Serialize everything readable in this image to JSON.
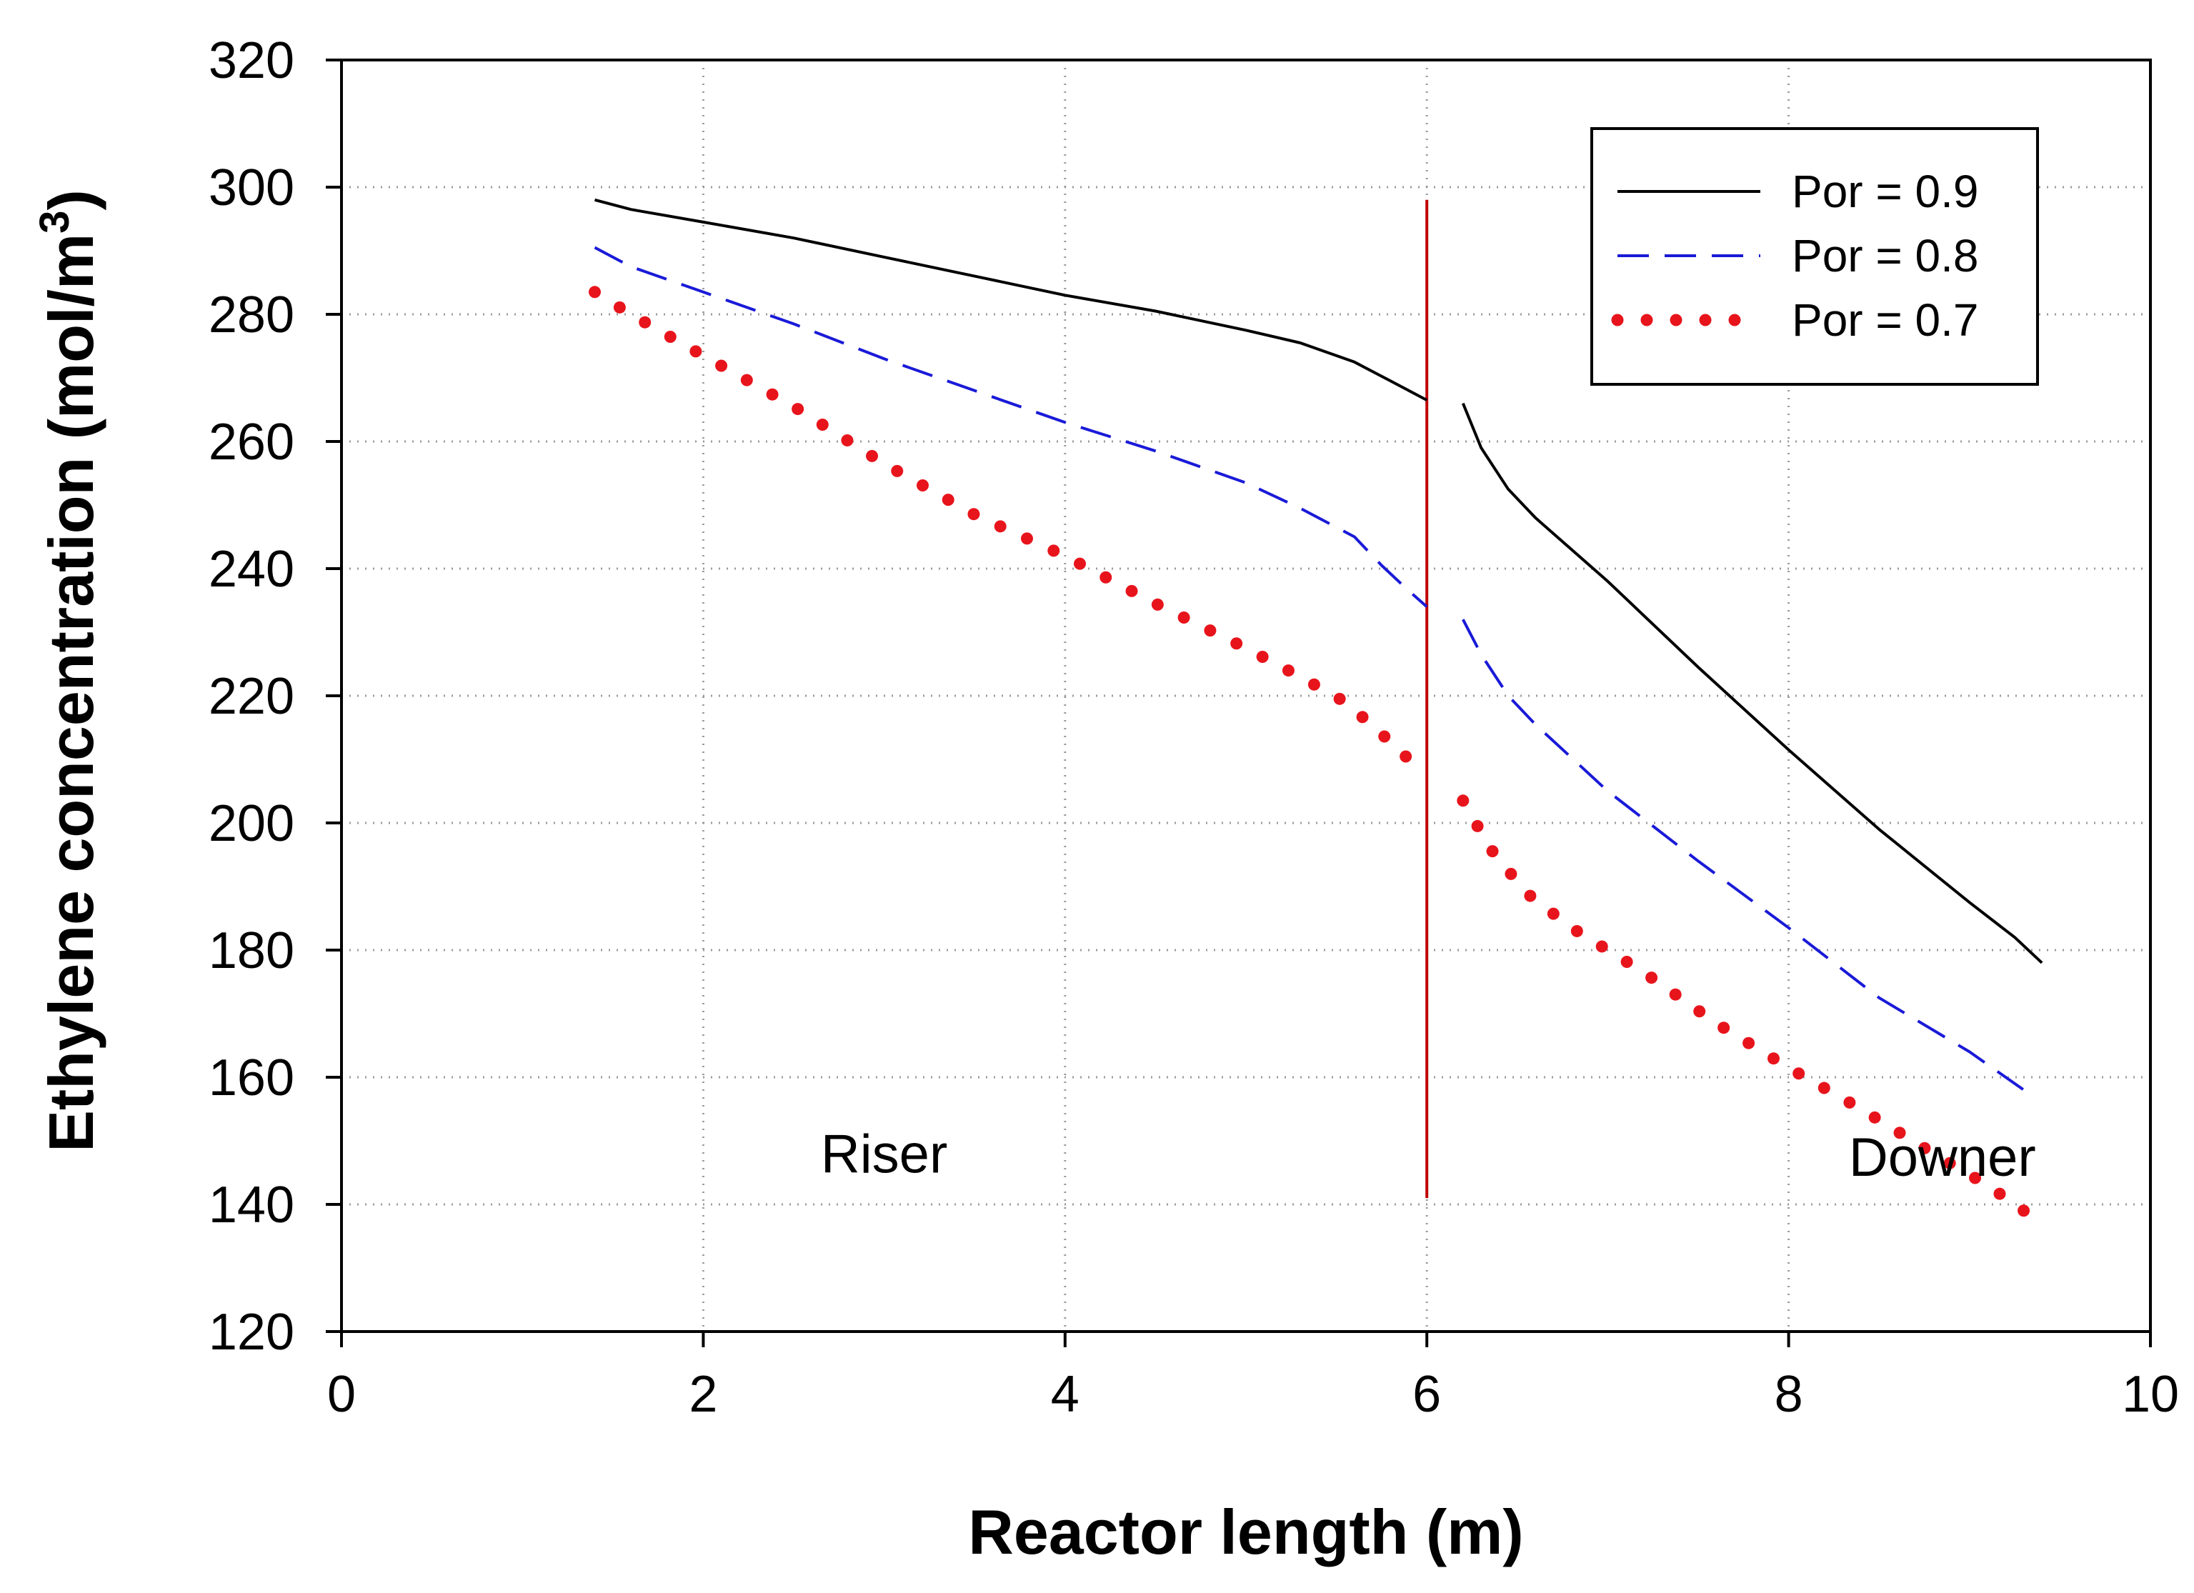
{
  "chart_data": {
    "type": "line",
    "title": "",
    "xlabel": "Reactor length (m)",
    "ylabel": "Ethylene concentration (mol/m",
    "ylabel_sup": "3",
    "ylabel_tail": ")",
    "xlim": [
      0,
      10
    ],
    "ylim": [
      120,
      320
    ],
    "xticks": [
      0,
      2,
      4,
      6,
      8,
      10
    ],
    "yticks": [
      120,
      140,
      160,
      180,
      200,
      220,
      240,
      260,
      280,
      300,
      320
    ],
    "grid": true,
    "legend_position": "top-right",
    "divider": {
      "x": 6,
      "y_from": 141,
      "y_to": 298,
      "color": "#c00000"
    },
    "annotations": [
      {
        "text": "Riser",
        "x": 3.0,
        "y": 145
      },
      {
        "text": "Downer",
        "x": 8.85,
        "y": 144.5
      }
    ],
    "series": [
      {
        "name": "Por = 0.9",
        "color": "#000000",
        "style": "solid",
        "segments": [
          {
            "x": [
              1.4,
              1.6,
              2.0,
              2.5,
              3.0,
              3.5,
              4.0,
              4.5,
              5.0,
              5.3,
              5.6,
              5.8,
              6.0
            ],
            "y": [
              298,
              296.5,
              294.5,
              292,
              289,
              286,
              283,
              280.5,
              277.5,
              275.5,
              272.5,
              269.5,
              266.5
            ]
          },
          {
            "x": [
              6.2,
              6.3,
              6.45,
              6.6,
              7.0,
              7.5,
              8.0,
              8.5,
              9.0,
              9.25,
              9.4
            ],
            "y": [
              266,
              259,
              252.5,
              248,
              238,
              224.5,
              211.5,
              199,
              187.5,
              182,
              178
            ]
          }
        ]
      },
      {
        "name": "Por = 0.8",
        "color": "#1a1ad8",
        "style": "dashed",
        "segments": [
          {
            "x": [
              1.4,
              1.6,
              2.0,
              2.5,
              3.0,
              3.5,
              4.0,
              4.5,
              5.0,
              5.3,
              5.6,
              5.75,
              5.9,
              6.0
            ],
            "y": [
              290.5,
              287.5,
              283.5,
              278.5,
              273,
              268,
              263,
              258.5,
              253.5,
              249.5,
              245,
              240.5,
              236.5,
              234
            ]
          },
          {
            "x": [
              6.2,
              6.3,
              6.45,
              6.6,
              7.0,
              7.5,
              8.0,
              8.5,
              9.0,
              9.35
            ],
            "y": [
              232,
              226.5,
              220,
              215.5,
              205,
              194,
              183.5,
              172.5,
              164,
              157
            ]
          }
        ]
      },
      {
        "name": "Por = 0.7",
        "color": "#e8141c",
        "style": "dotted",
        "segments": [
          {
            "x": [
              1.4,
              1.6,
              2.0,
              2.5,
              3.0,
              3.5,
              4.0,
              4.5,
              5.0,
              5.3,
              5.55,
              5.75,
              5.9
            ],
            "y": [
              283.5,
              280,
              273.5,
              265.5,
              256.5,
              248.5,
              242,
              234.5,
              227.5,
              223,
              219,
              214,
              210
            ]
          },
          {
            "x": [
              6.2,
              6.35,
              6.55,
              6.8,
              7.2,
              7.6,
              8.0,
              8.4,
              8.8,
              9.1,
              9.35
            ],
            "y": [
              203.5,
              196,
              189,
              183.5,
              176.5,
              168.5,
              161.5,
              155,
              148,
              143,
              138
            ]
          }
        ]
      }
    ]
  }
}
